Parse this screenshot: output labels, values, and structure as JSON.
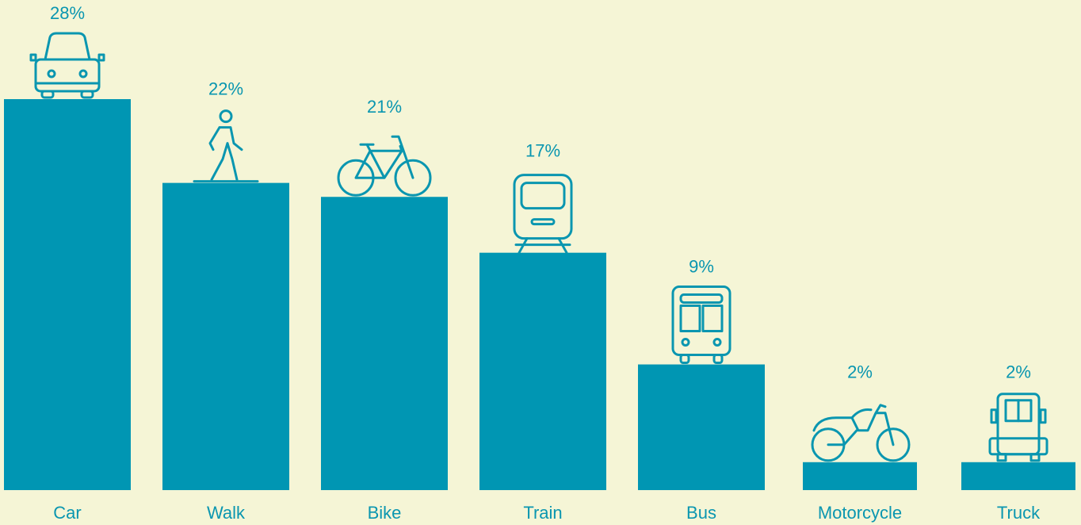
{
  "chart_data": {
    "type": "bar",
    "categories": [
      "Car",
      "Walk",
      "Bike",
      "Train",
      "Bus",
      "Motorcycle",
      "Truck"
    ],
    "values": [
      28,
      22,
      21,
      17,
      9,
      2,
      2
    ],
    "value_labels": [
      "28%",
      "22%",
      "21%",
      "17%",
      "9%",
      "2%",
      "2%"
    ],
    "color": "#0096b3"
  }
}
